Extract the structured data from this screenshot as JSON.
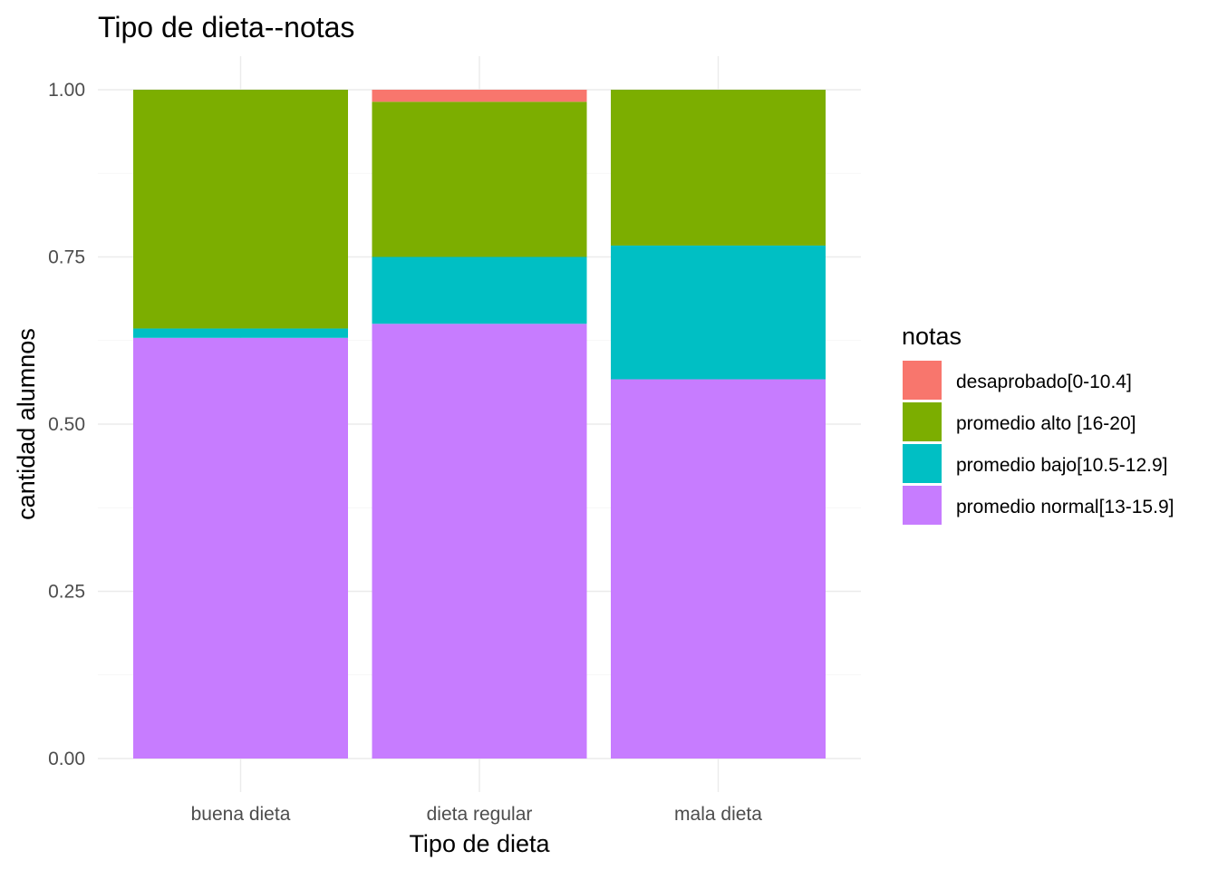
{
  "chart_data": {
    "type": "bar",
    "stacked": true,
    "title": "Tipo de dieta--notas",
    "xlabel": "Tipo de dieta",
    "ylabel": "cantidad alumnos",
    "ylim": [
      0,
      1
    ],
    "yticks": [
      "0.00",
      "0.25",
      "0.50",
      "0.75",
      "1.00"
    ],
    "grid": true,
    "legend_position": "right",
    "legend_title": "notas",
    "categories": [
      "buena dieta",
      "dieta regular",
      "mala dieta"
    ],
    "series": [
      {
        "name": "desaprobado[0-10.4]",
        "color": "#F8766D",
        "values": [
          0.0,
          0.018,
          0.0
        ]
      },
      {
        "name": "promedio alto [16-20]",
        "color": "#7CAE00",
        "values": [
          0.357,
          0.232,
          0.233
        ]
      },
      {
        "name": "promedio bajo[10.5-12.9]",
        "color": "#00BFC4",
        "values": [
          0.014,
          0.1,
          0.2
        ]
      },
      {
        "name": "promedio normal[13-15.9]",
        "color": "#C77CFF",
        "values": [
          0.629,
          0.65,
          0.567
        ]
      }
    ]
  }
}
